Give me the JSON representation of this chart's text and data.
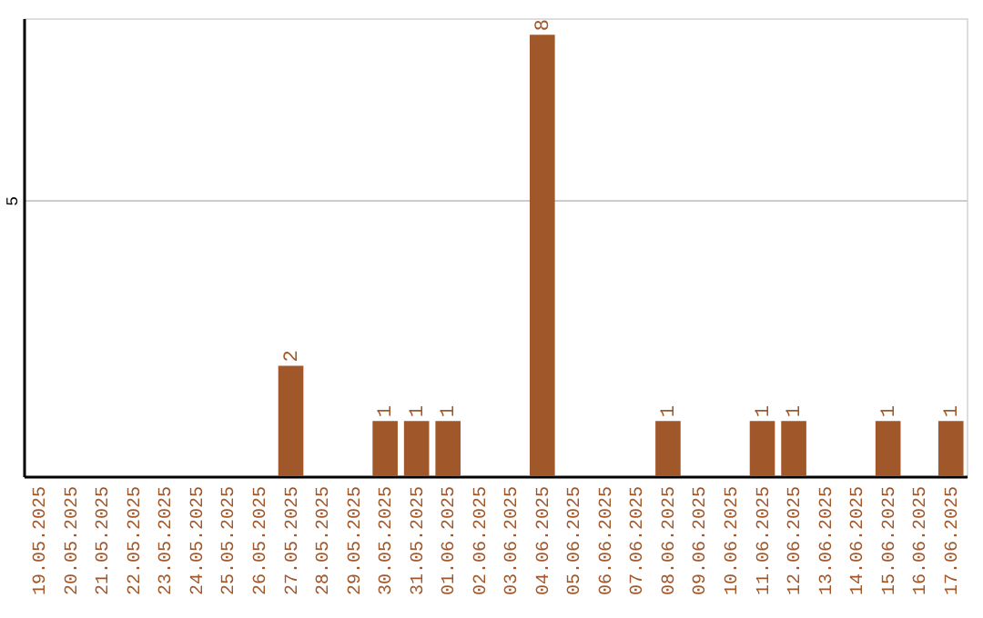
{
  "chart_data": {
    "type": "bar",
    "categories": [
      "19.05.2025",
      "20.05.2025",
      "21.05.2025",
      "22.05.2025",
      "23.05.2025",
      "24.05.2025",
      "25.05.2025",
      "26.05.2025",
      "27.05.2025",
      "28.05.2025",
      "29.05.2025",
      "30.05.2025",
      "31.05.2025",
      "01.06.2025",
      "02.06.2025",
      "03.06.2025",
      "04.06.2025",
      "05.06.2025",
      "06.06.2025",
      "07.06.2025",
      "08.06.2025",
      "09.06.2025",
      "10.06.2025",
      "11.06.2025",
      "12.06.2025",
      "13.06.2025",
      "14.06.2025",
      "15.06.2025",
      "16.06.2025",
      "17.06.2025"
    ],
    "values": [
      0,
      0,
      0,
      0,
      0,
      0,
      0,
      0,
      2,
      0,
      0,
      1,
      1,
      1,
      0,
      0,
      8,
      0,
      0,
      0,
      1,
      0,
      0,
      1,
      1,
      0,
      0,
      1,
      0,
      1
    ],
    "value_labels": [
      null,
      null,
      null,
      null,
      null,
      null,
      null,
      null,
      "2",
      null,
      null,
      "1",
      "1",
      "1",
      null,
      null,
      "8",
      null,
      null,
      null,
      "1",
      null,
      null,
      "1",
      "1",
      null,
      null,
      "1",
      null,
      "1"
    ],
    "color": "#a0572a",
    "ylim": [
      0,
      8.3
    ],
    "yticks": [
      5
    ],
    "grid": "y"
  }
}
